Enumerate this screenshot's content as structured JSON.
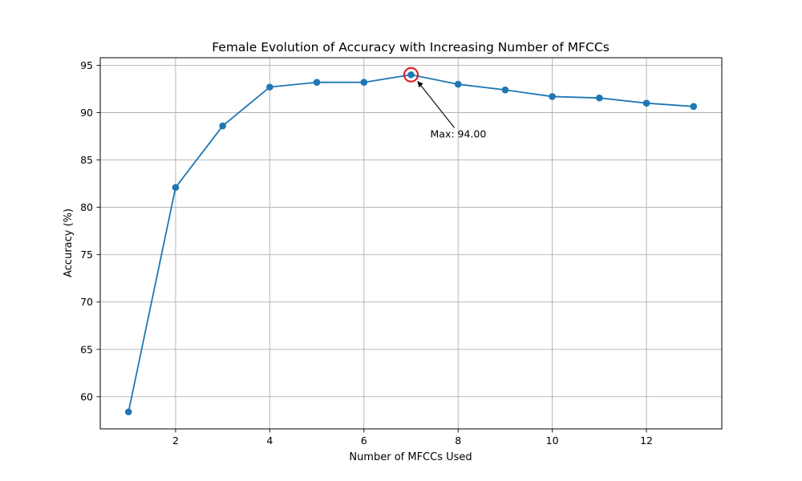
{
  "chart_data": {
    "type": "line",
    "title": "Female Evolution of Accuracy with Increasing Number of MFCCs",
    "xlabel": "Number of MFCCs Used",
    "ylabel": "Accuracy (%)",
    "xlim": [
      0.4,
      13.6
    ],
    "ylim": [
      56.6,
      95.8
    ],
    "xticks": [
      2,
      4,
      6,
      8,
      10,
      12
    ],
    "yticks": [
      60,
      65,
      70,
      75,
      80,
      85,
      90,
      95
    ],
    "grid": true,
    "series": [
      {
        "x": [
          1,
          2,
          3,
          4,
          5,
          6,
          7,
          8,
          9,
          10,
          11,
          12,
          13
        ],
        "values": [
          58.4,
          82.1,
          88.6,
          92.7,
          93.2,
          93.2,
          94.0,
          93.0,
          92.4,
          91.7,
          91.55,
          91.0,
          90.65
        ],
        "color": "#1f77b4",
        "marker": "circle"
      }
    ],
    "annotation": {
      "text": "Max: 94.00",
      "x": 7,
      "y": 94.0,
      "highlight_color": "#d62728"
    }
  }
}
